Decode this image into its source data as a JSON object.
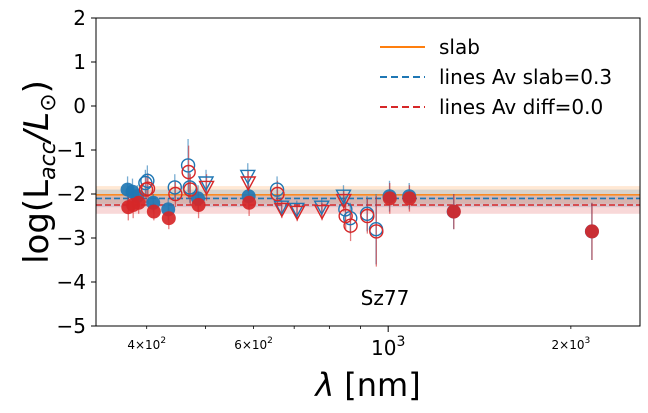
{
  "chart_data": {
    "type": "scatter",
    "annotation": "Sz77",
    "xlabel_prefix": "λ",
    "xlabel_suffix": "[nm]",
    "ylabel": "log(L_acc/L_⊙)",
    "ylabel_parts": {
      "pre": "log(L",
      "sub": "acc",
      "slash": "/",
      "lsun": "L",
      "sun": "⊙",
      "post": ")"
    },
    "xscale": "log",
    "xlim": [
      330,
      2600
    ],
    "ylim": [
      -5,
      2
    ],
    "yticks": [
      {
        "value": 2,
        "label": "2"
      },
      {
        "value": 1,
        "label": "1"
      },
      {
        "value": 0,
        "label": "0"
      },
      {
        "value": -1,
        "label": "−1"
      },
      {
        "value": -2,
        "label": "−2"
      },
      {
        "value": -3,
        "label": "−3"
      },
      {
        "value": -4,
        "label": "−4"
      },
      {
        "value": -5,
        "label": "−5"
      }
    ],
    "xticks_major": [
      {
        "value": 1000,
        "base": "10",
        "exp": "3"
      }
    ],
    "xticks_minor_labeled": [
      {
        "value": 400,
        "mant": "4",
        "base": "10",
        "exp": "2"
      },
      {
        "value": 600,
        "mant": "6",
        "base": "10",
        "exp": "2"
      },
      {
        "value": 2000,
        "mant": "2",
        "base": "10",
        "exp": "3"
      }
    ],
    "xticks_minor": [
      400,
      500,
      600,
      700,
      800,
      900,
      2000
    ],
    "colors": {
      "slab": "#ff7f0e",
      "lines_slab": "#1f77b4",
      "lines_diff": "#d62728"
    },
    "legend_position": "upper right",
    "legend": [
      {
        "label": "slab",
        "style": "solid",
        "color": "#ff7f0e"
      },
      {
        "label": "lines Av slab=0.3",
        "style": "dashed",
        "color": "#1f77b4"
      },
      {
        "label": "lines Av diff=0.0",
        "style": "dashed",
        "color": "#d62728"
      }
    ],
    "reference_lines": [
      {
        "name": "slab",
        "y": -2.02,
        "band": [
          -2.22,
          -1.82
        ],
        "color": "#ff7f0e",
        "style": "solid"
      },
      {
        "name": "lines Av slab=0.3",
        "y": -2.1,
        "band": [
          -2.3,
          -1.9
        ],
        "color": "#1f77b4",
        "style": "dashed"
      },
      {
        "name": "lines Av diff=0.0",
        "y": -2.25,
        "band": [
          -2.45,
          -2.05
        ],
        "color": "#d62728",
        "style": "dashed"
      }
    ],
    "series": [
      {
        "name": "Av slab=0.3 (blue)",
        "color": "#1f77b4",
        "points": [
          {
            "x": 372,
            "y": -1.9,
            "err": 0.3,
            "marker": "filled"
          },
          {
            "x": 379,
            "y": -1.95,
            "err": 0.3,
            "marker": "filled"
          },
          {
            "x": 386,
            "y": -2.05,
            "err": 0.25,
            "marker": "filled"
          },
          {
            "x": 398,
            "y": -1.75,
            "err": 0.3,
            "marker": "open"
          },
          {
            "x": 401,
            "y": -1.7,
            "err": 0.35,
            "marker": "open"
          },
          {
            "x": 410,
            "y": -2.2,
            "err": 0.2,
            "marker": "filled"
          },
          {
            "x": 434,
            "y": -2.35,
            "err": 0.25,
            "marker": "filled"
          },
          {
            "x": 445,
            "y": -1.85,
            "err": 0.3,
            "marker": "open"
          },
          {
            "x": 468,
            "y": -1.35,
            "err": 0.6,
            "marker": "open"
          },
          {
            "x": 471,
            "y": -1.85,
            "err": 0.35,
            "marker": "open"
          },
          {
            "x": 486,
            "y": -2.1,
            "err": 0.3,
            "marker": "filled"
          },
          {
            "x": 501,
            "y": -1.75,
            "err": 0.3,
            "marker": "triangle"
          },
          {
            "x": 587,
            "y": -1.6,
            "err": 0.3,
            "marker": "triangle"
          },
          {
            "x": 589,
            "y": -2.05,
            "err": 0.3,
            "marker": "filled"
          },
          {
            "x": 656,
            "y": -1.9,
            "err": 0.3,
            "marker": "open"
          },
          {
            "x": 667,
            "y": -2.3,
            "err": 0.2,
            "marker": "triangle"
          },
          {
            "x": 707,
            "y": -2.35,
            "err": 0.2,
            "marker": "triangle"
          },
          {
            "x": 777,
            "y": -2.3,
            "err": 0.2,
            "marker": "triangle"
          },
          {
            "x": 844,
            "y": -2.05,
            "err": 0.25,
            "marker": "triangle"
          },
          {
            "x": 850,
            "y": -2.35,
            "err": 0.3,
            "marker": "open"
          },
          {
            "x": 866,
            "y": -2.55,
            "err": 0.35,
            "marker": "open"
          },
          {
            "x": 923,
            "y": -2.45,
            "err": 0.4,
            "marker": "open"
          },
          {
            "x": 955,
            "y": -2.8,
            "err": 0.8,
            "marker": "open"
          },
          {
            "x": 1005,
            "y": -2.05,
            "err": 0.35,
            "marker": "filled"
          },
          {
            "x": 1083,
            "y": -2.05,
            "err": 0.3,
            "marker": "filled"
          },
          {
            "x": 1282,
            "y": -2.4,
            "err": 0.4,
            "marker": "filled"
          },
          {
            "x": 2166,
            "y": -2.85,
            "err": 0.65,
            "marker": "filled"
          }
        ]
      },
      {
        "name": "Av diff=0.0 (red)",
        "color": "#d62728",
        "points": [
          {
            "x": 373,
            "y": -2.3,
            "err": 0.3,
            "marker": "filled"
          },
          {
            "x": 380,
            "y": -2.25,
            "err": 0.3,
            "marker": "filled"
          },
          {
            "x": 388,
            "y": -2.2,
            "err": 0.25,
            "marker": "filled"
          },
          {
            "x": 399,
            "y": -1.9,
            "err": 0.3,
            "marker": "open"
          },
          {
            "x": 402,
            "y": -1.88,
            "err": 0.35,
            "marker": "open"
          },
          {
            "x": 411,
            "y": -2.4,
            "err": 0.2,
            "marker": "filled"
          },
          {
            "x": 435,
            "y": -2.55,
            "err": 0.25,
            "marker": "filled"
          },
          {
            "x": 446,
            "y": -2.0,
            "err": 0.3,
            "marker": "open"
          },
          {
            "x": 469,
            "y": -1.5,
            "err": 0.6,
            "marker": "open"
          },
          {
            "x": 472,
            "y": -1.9,
            "err": 0.35,
            "marker": "open"
          },
          {
            "x": 487,
            "y": -2.25,
            "err": 0.3,
            "marker": "filled"
          },
          {
            "x": 502,
            "y": -1.85,
            "err": 0.3,
            "marker": "triangle"
          },
          {
            "x": 588,
            "y": -1.75,
            "err": 0.3,
            "marker": "triangle"
          },
          {
            "x": 590,
            "y": -2.2,
            "err": 0.3,
            "marker": "filled"
          },
          {
            "x": 657,
            "y": -2.0,
            "err": 0.3,
            "marker": "open"
          },
          {
            "x": 668,
            "y": -2.35,
            "err": 0.2,
            "marker": "triangle"
          },
          {
            "x": 708,
            "y": -2.42,
            "err": 0.2,
            "marker": "triangle"
          },
          {
            "x": 778,
            "y": -2.4,
            "err": 0.2,
            "marker": "triangle"
          },
          {
            "x": 845,
            "y": -2.15,
            "err": 0.25,
            "marker": "triangle"
          },
          {
            "x": 851,
            "y": -2.5,
            "err": 0.3,
            "marker": "open"
          },
          {
            "x": 867,
            "y": -2.72,
            "err": 0.35,
            "marker": "open"
          },
          {
            "x": 924,
            "y": -2.5,
            "err": 0.4,
            "marker": "open"
          },
          {
            "x": 956,
            "y": -2.85,
            "err": 0.8,
            "marker": "open"
          },
          {
            "x": 1006,
            "y": -2.1,
            "err": 0.35,
            "marker": "filled"
          },
          {
            "x": 1084,
            "y": -2.1,
            "err": 0.3,
            "marker": "filled"
          },
          {
            "x": 1283,
            "y": -2.4,
            "err": 0.4,
            "marker": "filled"
          },
          {
            "x": 2167,
            "y": -2.85,
            "err": 0.65,
            "marker": "filled"
          }
        ]
      }
    ]
  }
}
